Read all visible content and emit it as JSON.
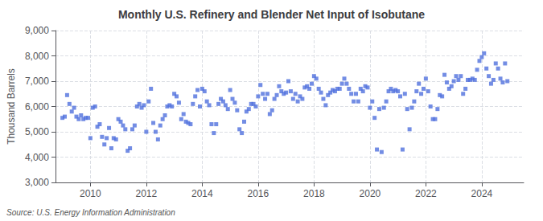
{
  "chart_data": {
    "type": "scatter",
    "title": "Monthly U.S. Refinery and Blender Net Input of Isobutane",
    "ylabel": "Thousand Barrels",
    "annotations": [
      "Source: U.S. Energy Information Administration"
    ],
    "marker": "square",
    "grid": true,
    "xlim": [
      2008.75,
      2025.5
    ],
    "xticks": [
      2010,
      2012,
      2014,
      2016,
      2018,
      2020,
      2022,
      2024
    ],
    "ylim": [
      3000,
      9000
    ],
    "yticks": [
      {
        "value": 3000,
        "label": "3,000"
      },
      {
        "value": 4000,
        "label": "4,000"
      },
      {
        "value": 5000,
        "label": "5,000"
      },
      {
        "value": 6000,
        "label": "6,000"
      },
      {
        "value": 7000,
        "label": "7,000"
      },
      {
        "value": 8000,
        "label": "8,000"
      },
      {
        "value": 9000,
        "label": "9,000"
      }
    ],
    "x": [
      2009.0,
      2009.083,
      2009.167,
      2009.25,
      2009.333,
      2009.417,
      2009.5,
      2009.583,
      2009.667,
      2009.75,
      2009.833,
      2009.917,
      2010.0,
      2010.083,
      2010.167,
      2010.25,
      2010.333,
      2010.417,
      2010.5,
      2010.583,
      2010.667,
      2010.75,
      2010.833,
      2010.917,
      2011.0,
      2011.083,
      2011.167,
      2011.25,
      2011.333,
      2011.417,
      2011.5,
      2011.583,
      2011.667,
      2011.75,
      2011.833,
      2011.917,
      2012.0,
      2012.083,
      2012.167,
      2012.25,
      2012.333,
      2012.417,
      2012.5,
      2012.583,
      2012.667,
      2012.75,
      2012.833,
      2012.917,
      2013.0,
      2013.083,
      2013.167,
      2013.25,
      2013.333,
      2013.417,
      2013.5,
      2013.583,
      2013.667,
      2013.75,
      2013.833,
      2013.917,
      2014.0,
      2014.083,
      2014.167,
      2014.25,
      2014.333,
      2014.417,
      2014.5,
      2014.583,
      2014.667,
      2014.75,
      2014.833,
      2014.917,
      2015.0,
      2015.083,
      2015.167,
      2015.25,
      2015.333,
      2015.417,
      2015.5,
      2015.583,
      2015.667,
      2015.75,
      2015.833,
      2015.917,
      2016.0,
      2016.083,
      2016.167,
      2016.25,
      2016.333,
      2016.417,
      2016.5,
      2016.583,
      2016.667,
      2016.75,
      2016.833,
      2016.917,
      2017.0,
      2017.083,
      2017.167,
      2017.25,
      2017.333,
      2017.417,
      2017.5,
      2017.583,
      2017.667,
      2017.75,
      2017.833,
      2017.917,
      2018.0,
      2018.083,
      2018.167,
      2018.25,
      2018.333,
      2018.417,
      2018.5,
      2018.583,
      2018.667,
      2018.75,
      2018.833,
      2018.917,
      2019.0,
      2019.083,
      2019.167,
      2019.25,
      2019.333,
      2019.417,
      2019.5,
      2019.583,
      2019.667,
      2019.75,
      2019.833,
      2019.917,
      2020.0,
      2020.083,
      2020.167,
      2020.25,
      2020.333,
      2020.417,
      2020.5,
      2020.583,
      2020.667,
      2020.75,
      2020.833,
      2020.917,
      2021.0,
      2021.083,
      2021.167,
      2021.25,
      2021.333,
      2021.417,
      2021.5,
      2021.583,
      2021.667,
      2021.75,
      2021.833,
      2021.917,
      2022.0,
      2022.083,
      2022.167,
      2022.25,
      2022.333,
      2022.417,
      2022.5,
      2022.583,
      2022.667,
      2022.75,
      2022.833,
      2022.917,
      2023.0,
      2023.083,
      2023.167,
      2023.25,
      2023.333,
      2023.417,
      2023.5,
      2023.583,
      2023.667,
      2023.75,
      2023.833,
      2023.917,
      2024.0,
      2024.083,
      2024.167,
      2024.25,
      2024.333,
      2024.417,
      2024.5,
      2024.583,
      2024.667,
      2024.75,
      2024.833,
      2024.917
    ],
    "values": [
      5550,
      5600,
      6450,
      6100,
      5800,
      5950,
      5600,
      5500,
      5650,
      5500,
      5550,
      5550,
      4750,
      5950,
      6000,
      5200,
      5300,
      4800,
      4500,
      4750,
      5150,
      4350,
      4750,
      4700,
      5500,
      5400,
      5250,
      5100,
      4250,
      4350,
      5100,
      5250,
      6000,
      6100,
      5950,
      6050,
      5000,
      6200,
      6700,
      5350,
      5000,
      4700,
      5250,
      5500,
      5650,
      6000,
      6050,
      6000,
      6500,
      6400,
      6150,
      5500,
      5700,
      5400,
      5350,
      5300,
      6100,
      6400,
      6650,
      6000,
      6700,
      6600,
      6200,
      6050,
      5300,
      4950,
      5300,
      6100,
      6300,
      6200,
      6050,
      5900,
      6650,
      6300,
      6150,
      5850,
      5100,
      4950,
      5400,
      5800,
      5900,
      6100,
      6100,
      6000,
      6400,
      6850,
      6500,
      6300,
      6500,
      5700,
      5850,
      6300,
      6450,
      6800,
      6600,
      6500,
      6550,
      7000,
      6600,
      6300,
      6500,
      6200,
      6400,
      6300,
      6750,
      6800,
      6700,
      6900,
      7200,
      7100,
      6700,
      6550,
      6300,
      6050,
      6450,
      6550,
      6650,
      6600,
      6700,
      6700,
      6900,
      7100,
      6900,
      6700,
      6500,
      6200,
      6500,
      6200,
      6700,
      6600,
      6800,
      6750,
      5950,
      6200,
      5550,
      4300,
      5900,
      4200,
      5950,
      6200,
      6600,
      6700,
      6600,
      6650,
      6600,
      6400,
      4300,
      6500,
      5900,
      5100,
      5950,
      6200,
      6600,
      6900,
      6500,
      6700,
      7100,
      6600,
      6000,
      5500,
      5500,
      5900,
      6450,
      6400,
      7250,
      6950,
      6700,
      6800,
      7000,
      7200,
      7050,
      7200,
      6500,
      6700,
      7050,
      7050,
      7100,
      7050,
      7450,
      7800,
      7950,
      8100,
      7500,
      7200,
      6900,
      7050,
      7700,
      7500,
      7100,
      6950,
      7700,
      7000
    ]
  }
}
